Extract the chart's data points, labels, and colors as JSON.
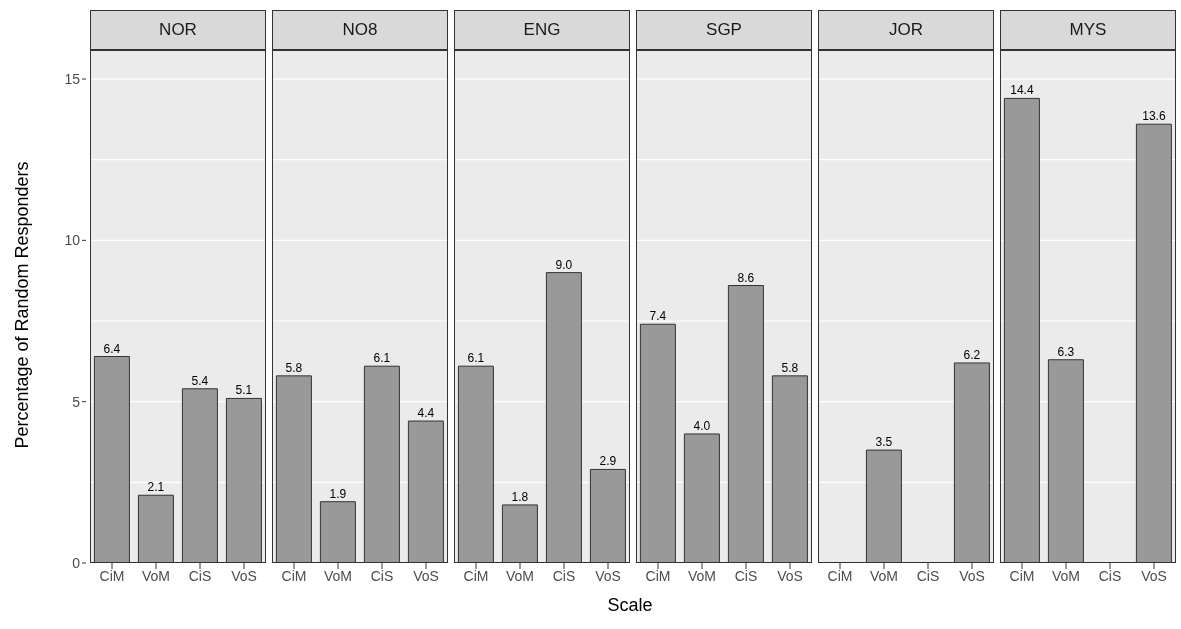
{
  "chart_data": [
    {
      "type": "bar",
      "title": "NOR",
      "ylabel": "Percentage of Random Responders",
      "categories": [
        "CiM",
        "VoM",
        "CiS",
        "VoS"
      ],
      "values": [
        6.4,
        2.1,
        5.4,
        5.1
      ],
      "value_labels": [
        "6.4",
        "2.1",
        "5.4",
        "5.1"
      ],
      "color": "#999999",
      "ylim": [
        0,
        15.9
      ],
      "yticks": [
        0,
        {
          "value": 2.5,
          "label": null
        },
        5,
        {
          "value": 7.5,
          "label": null
        },
        10,
        {
          "value": 12.5,
          "label": null
        },
        15
      ],
      "grid": "y"
    },
    {
      "type": "bar",
      "title": "NO8",
      "categories": [
        "CiM",
        "VoM",
        "CiS",
        "VoS"
      ],
      "values": [
        5.8,
        1.9,
        6.1,
        4.4
      ],
      "value_labels": [
        "5.8",
        "1.9",
        "6.1",
        "4.4"
      ],
      "color": "#999999",
      "ylim": [
        0,
        15.9
      ],
      "yticks": [
        0,
        {
          "value": 2.5,
          "label": null
        },
        5,
        {
          "value": 7.5,
          "label": null
        },
        10,
        {
          "value": 12.5,
          "label": null
        },
        15
      ],
      "grid": "y",
      "tick_labels": "x"
    },
    {
      "type": "bar",
      "title": "ENG",
      "xlabel": "Scale",
      "categories": [
        "CiM",
        "VoM",
        "CiS",
        "VoS"
      ],
      "values": [
        6.1,
        1.8,
        9.0,
        2.9
      ],
      "value_labels": [
        "6.1",
        "1.8",
        "9.0",
        "2.9"
      ],
      "color": "#999999",
      "ylim": [
        0,
        15.9
      ],
      "yticks": [
        0,
        {
          "value": 2.5,
          "label": null
        },
        5,
        {
          "value": 7.5,
          "label": null
        },
        10,
        {
          "value": 12.5,
          "label": null
        },
        15
      ],
      "grid": "y",
      "tick_labels": "x"
    },
    {
      "type": "bar",
      "title": "SGP",
      "categories": [
        "CiM",
        "VoM",
        "CiS",
        "VoS"
      ],
      "values": [
        7.4,
        4.0,
        8.6,
        5.8
      ],
      "value_labels": [
        "7.4",
        "4.0",
        "8.6",
        "5.8"
      ],
      "color": "#999999",
      "ylim": [
        0,
        15.9
      ],
      "yticks": [
        0,
        {
          "value": 2.5,
          "label": null
        },
        5,
        {
          "value": 7.5,
          "label": null
        },
        10,
        {
          "value": 12.5,
          "label": null
        },
        15
      ],
      "grid": "y",
      "tick_labels": "x"
    },
    {
      "type": "bar",
      "title": "JOR",
      "categories": [
        "CiM",
        "VoM",
        "CiS",
        "VoS"
      ],
      "values": [
        null,
        3.5,
        null,
        6.2
      ],
      "value_labels": [
        null,
        "3.5",
        null,
        "6.2"
      ],
      "color": "#999999",
      "ylim": [
        0,
        15.9
      ],
      "yticks": [
        0,
        {
          "value": 2.5,
          "label": null
        },
        5,
        {
          "value": 7.5,
          "label": null
        },
        10,
        {
          "value": 12.5,
          "label": null
        },
        15
      ],
      "grid": "y",
      "tick_labels": "x"
    },
    {
      "type": "bar",
      "title": "MYS",
      "categories": [
        "CiM",
        "VoM",
        "CiS",
        "VoS"
      ],
      "values": [
        14.4,
        6.3,
        null,
        13.6
      ],
      "value_labels": [
        "14.4",
        "6.3",
        null,
        "13.6"
      ],
      "color": "#999999",
      "ylim": [
        0,
        15.9
      ],
      "yticks": [
        0,
        {
          "value": 2.5,
          "label": null
        },
        5,
        {
          "value": 7.5,
          "label": null
        },
        10,
        {
          "value": 12.5,
          "label": null
        },
        15
      ],
      "grid": "y",
      "tick_labels": "x"
    }
  ]
}
